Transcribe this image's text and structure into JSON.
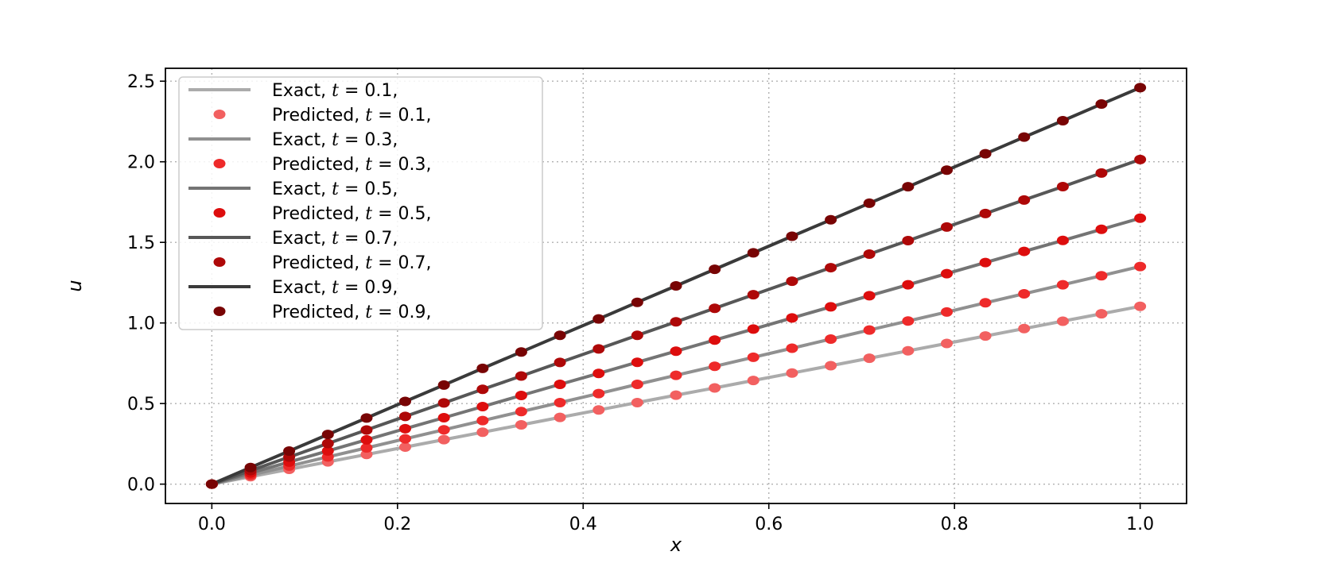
{
  "chart_data": {
    "type": "line",
    "title": "",
    "xlabel": "x",
    "ylabel": "u",
    "xlim": [
      -0.05,
      1.05
    ],
    "ylim": [
      -0.12,
      2.58
    ],
    "xticks": [
      0.0,
      0.2,
      0.4,
      0.6,
      0.8,
      1.0
    ],
    "xtick_labels": [
      "0.0",
      "0.2",
      "0.4",
      "0.6",
      "0.8",
      "1.0"
    ],
    "yticks": [
      0.0,
      0.5,
      1.0,
      1.5,
      2.0,
      2.5
    ],
    "ytick_labels": [
      "0.0",
      "0.5",
      "1.0",
      "1.5",
      "2.0",
      "2.5"
    ],
    "grid": true,
    "grid_style": "dotted",
    "legend_position": "upper-left",
    "x": [
      0.0,
      0.0417,
      0.0833,
      0.125,
      0.1667,
      0.2083,
      0.25,
      0.2917,
      0.3333,
      0.375,
      0.4167,
      0.4583,
      0.5,
      0.5417,
      0.5833,
      0.625,
      0.6667,
      0.7083,
      0.75,
      0.7917,
      0.8333,
      0.875,
      0.9167,
      0.9583,
      1.0
    ],
    "series": [
      {
        "t_label": "0.1",
        "exact_label": "Exact,",
        "pred_label": "Predicted,",
        "line_color": "#ababab",
        "marker_color": "#f26060",
        "values": [
          0.0,
          0.046,
          0.092,
          0.138,
          0.184,
          0.23,
          0.276,
          0.322,
          0.368,
          0.414,
          0.46,
          0.506,
          0.552,
          0.597,
          0.643,
          0.689,
          0.735,
          0.781,
          0.827,
          0.873,
          0.919,
          0.965,
          1.011,
          1.057,
          1.103
        ]
      },
      {
        "t_label": "0.3",
        "exact_label": "Exact,",
        "pred_label": "Predicted,",
        "line_color": "#909090",
        "marker_color": "#ee2a2a",
        "values": [
          0.0,
          0.056,
          0.112,
          0.169,
          0.225,
          0.281,
          0.337,
          0.394,
          0.45,
          0.506,
          0.562,
          0.619,
          0.675,
          0.731,
          0.787,
          0.843,
          0.9,
          0.956,
          1.012,
          1.068,
          1.125,
          1.181,
          1.237,
          1.293,
          1.35
        ]
      },
      {
        "t_label": "0.5",
        "exact_label": "Exact,",
        "pred_label": "Predicted,",
        "line_color": "#747474",
        "marker_color": "#dd0d0d",
        "values": [
          0.0,
          0.069,
          0.137,
          0.206,
          0.275,
          0.344,
          0.412,
          0.481,
          0.55,
          0.619,
          0.687,
          0.756,
          0.825,
          0.894,
          0.962,
          1.031,
          1.1,
          1.169,
          1.237,
          1.306,
          1.375,
          1.444,
          1.512,
          1.581,
          1.65
        ]
      },
      {
        "t_label": "0.7",
        "exact_label": "Exact,",
        "pred_label": "Predicted,",
        "line_color": "#575757",
        "marker_color": "#ae0808",
        "values": [
          0.0,
          0.084,
          0.168,
          0.252,
          0.336,
          0.42,
          0.504,
          0.588,
          0.671,
          0.755,
          0.839,
          0.923,
          1.007,
          1.091,
          1.175,
          1.259,
          1.343,
          1.427,
          1.511,
          1.595,
          1.679,
          1.763,
          1.846,
          1.93,
          2.014
        ]
      },
      {
        "t_label": "0.9",
        "exact_label": "Exact,",
        "pred_label": "Predicted,",
        "line_color": "#3a3a3a",
        "marker_color": "#780404",
        "values": [
          0.0,
          0.103,
          0.205,
          0.308,
          0.41,
          0.513,
          0.615,
          0.718,
          0.82,
          0.923,
          1.025,
          1.128,
          1.23,
          1.333,
          1.435,
          1.538,
          1.64,
          1.743,
          1.845,
          1.948,
          2.05,
          2.153,
          2.255,
          2.358,
          2.46
        ]
      }
    ]
  }
}
